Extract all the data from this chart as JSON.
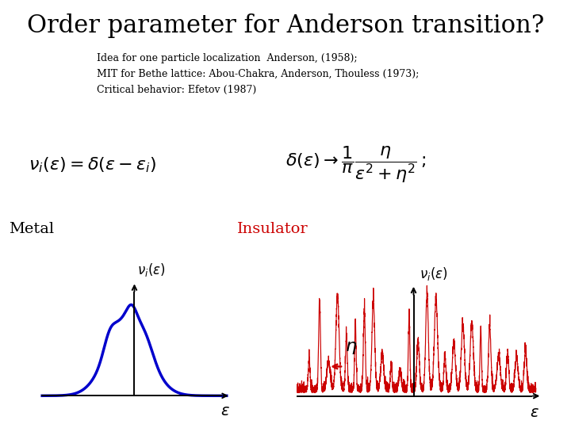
{
  "title": "Order parameter for Anderson transition?",
  "subtitle_lines": [
    "Idea for one particle localization  Anderson, (1958);",
    "MIT for Bethe lattice: Abou-Chakra, Anderson, Thouless (1973);",
    "Critical behavior: Efetov (1987)"
  ],
  "metal_label": "Metal",
  "insulator_label": "Insulator",
  "bg_color": "#ffffff",
  "title_color": "#000000",
  "metal_color": "#0000cc",
  "insulator_color": "#cc0000",
  "insulator_label_color": "#cc0000"
}
